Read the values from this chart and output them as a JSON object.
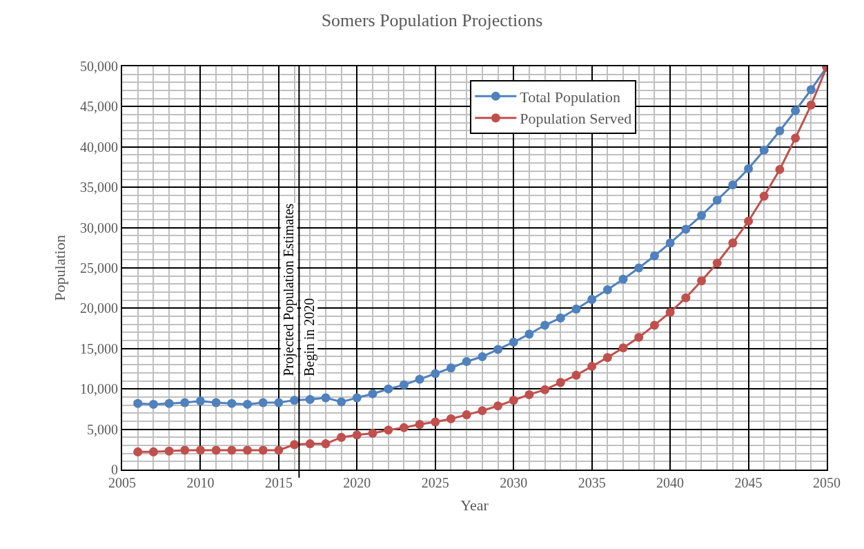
{
  "chart_data": {
    "type": "line",
    "title": "Somers Population Projections",
    "xlabel": "Year",
    "ylabel": "Population",
    "x": [
      2006,
      2007,
      2008,
      2009,
      2010,
      2011,
      2012,
      2013,
      2014,
      2015,
      2016,
      2017,
      2018,
      2019,
      2020,
      2021,
      2022,
      2023,
      2024,
      2025,
      2026,
      2027,
      2028,
      2029,
      2030,
      2031,
      2032,
      2033,
      2034,
      2035,
      2036,
      2037,
      2038,
      2039,
      2040,
      2041,
      2042,
      2043,
      2044,
      2045,
      2046,
      2047,
      2048,
      2049,
      2050
    ],
    "series": [
      {
        "name": "Total Population",
        "color": "#4f81bd",
        "values": [
          8200,
          8100,
          8200,
          8300,
          8500,
          8300,
          8200,
          8100,
          8300,
          8300,
          8600,
          8700,
          8900,
          8400,
          8900,
          9400,
          10000,
          10500,
          11200,
          11900,
          12600,
          13400,
          14000,
          14900,
          15800,
          16800,
          17900,
          18800,
          19900,
          21100,
          22300,
          23600,
          25000,
          26500,
          28100,
          29800,
          31500,
          33400,
          35300,
          37300,
          39600,
          42000,
          44500,
          47100,
          49900
        ]
      },
      {
        "name": "Population Served",
        "color": "#c0504d",
        "values": [
          2200,
          2200,
          2300,
          2400,
          2400,
          2400,
          2400,
          2400,
          2400,
          2400,
          3100,
          3200,
          3200,
          4000,
          4300,
          4500,
          4900,
          5200,
          5600,
          5900,
          6300,
          6800,
          7300,
          7900,
          8600,
          9300,
          9900,
          10800,
          11700,
          12800,
          13900,
          15100,
          16400,
          17900,
          19500,
          21300,
          23400,
          25600,
          28100,
          30800,
          33900,
          37200,
          41100,
          45200,
          49900
        ]
      }
    ],
    "xlim": [
      2005,
      2050
    ],
    "xticks": [
      2005,
      2010,
      2015,
      2020,
      2025,
      2030,
      2035,
      2040,
      2045,
      2050
    ],
    "ylim": [
      0,
      50000
    ],
    "yticks": [
      {
        "value": 0,
        "label": "0"
      },
      {
        "value": 5000,
        "label": "5,000"
      },
      {
        "value": 10000,
        "label": "10,000"
      },
      {
        "value": 15000,
        "label": "15,000"
      },
      {
        "value": 20000,
        "label": "20,000"
      },
      {
        "value": 25000,
        "label": "25,000"
      },
      {
        "value": 30000,
        "label": "30,000"
      },
      {
        "value": 35000,
        "label": "35,000"
      },
      {
        "value": 40000,
        "label": "40,000"
      },
      {
        "value": 45000,
        "label": "45,000"
      },
      {
        "value": 50000,
        "label": "50,000"
      }
    ],
    "ref_lines": [
      {
        "axis": "x",
        "value": 2016.3,
        "label": "Projected Population Estimates\nBegin in 2020",
        "color": "#000000"
      }
    ],
    "grid": true,
    "legend": "top",
    "marker": "circle",
    "line_style": "solid"
  }
}
